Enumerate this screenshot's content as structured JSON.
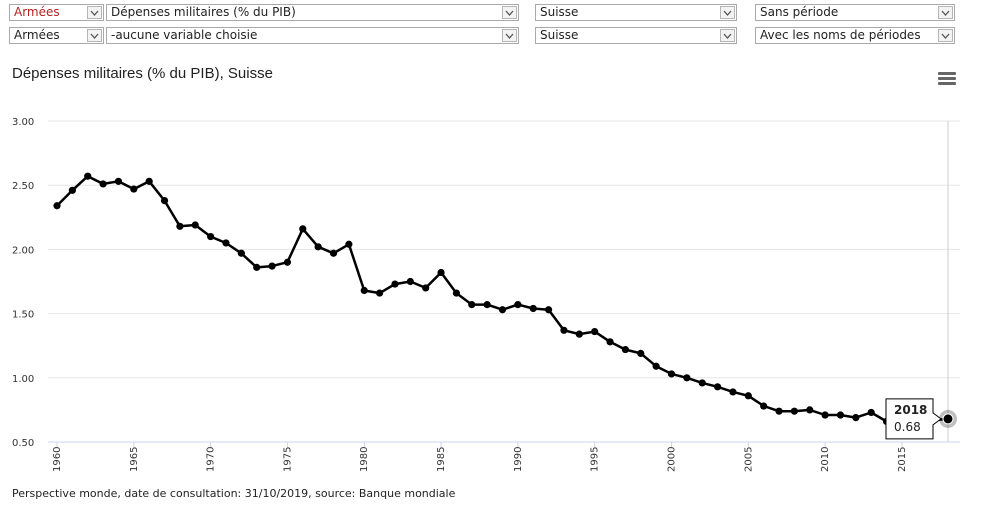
{
  "controls": {
    "row1": [
      {
        "value": "Armées",
        "accent": true
      },
      {
        "value": "Dépenses militaires (% du PIB)",
        "accent": false
      },
      {
        "value": "Suisse",
        "accent": false
      },
      {
        "value": "Sans période",
        "accent": false
      }
    ],
    "row2": [
      {
        "value": "Armées",
        "accent": false
      },
      {
        "value": "-aucune variable choisie",
        "accent": false
      },
      {
        "value": "Suisse",
        "accent": false
      },
      {
        "value": "Avec les noms de périodes",
        "accent": false
      }
    ]
  },
  "menu_icon": "hamburger-menu-icon",
  "source_note": "Perspective monde, date de consultation: 31/10/2019, source: Banque mondiale",
  "colors": {
    "accent": "#b22222",
    "line": "#000000",
    "grid": "#e6e6e6"
  },
  "chart_data": {
    "type": "line",
    "title": "Dépenses militaires (% du PIB), Suisse",
    "xlabel": "",
    "ylabel": "",
    "xlim": [
      1960,
      2018
    ],
    "ylim": [
      0.5,
      3.0
    ],
    "yticks": [
      "0.50",
      "1.00",
      "1.50",
      "2.00",
      "2.50",
      "3.00"
    ],
    "xticks": [
      "1960",
      "1965",
      "1970",
      "1975",
      "1980",
      "1985",
      "1990",
      "1995",
      "2000",
      "2005",
      "2010",
      "2015"
    ],
    "grid": true,
    "legend": "none",
    "series": [
      {
        "x": [
          1960,
          1961,
          1962,
          1963,
          1964,
          1965,
          1966,
          1967,
          1968,
          1969,
          1970,
          1971,
          1972,
          1973,
          1974,
          1975,
          1976,
          1977,
          1978,
          1979,
          1980,
          1981,
          1982,
          1983,
          1984,
          1985,
          1986,
          1987,
          1988,
          1989,
          1990,
          1991,
          1992,
          1993,
          1994,
          1995,
          1996,
          1997,
          1998,
          1999,
          2000,
          2001,
          2002,
          2003,
          2004,
          2005,
          2006,
          2007,
          2008,
          2009,
          2010,
          2011,
          2012,
          2013,
          2014,
          2015,
          2016,
          2017,
          2018
        ],
        "values": [
          2.34,
          2.46,
          2.57,
          2.51,
          2.53,
          2.47,
          2.53,
          2.38,
          2.18,
          2.19,
          2.1,
          2.05,
          1.97,
          1.86,
          1.87,
          1.9,
          2.16,
          2.02,
          1.97,
          2.04,
          1.68,
          1.66,
          1.73,
          1.75,
          1.7,
          1.82,
          1.66,
          1.57,
          1.57,
          1.53,
          1.57,
          1.54,
          1.53,
          1.37,
          1.34,
          1.36,
          1.28,
          1.22,
          1.19,
          1.09,
          1.03,
          1.0,
          0.96,
          0.93,
          0.89,
          0.86,
          0.78,
          0.74,
          0.74,
          0.75,
          0.71,
          0.71,
          0.69,
          0.73,
          0.66,
          0.66,
          0.67,
          0.67,
          0.68
        ]
      }
    ],
    "tooltip": {
      "year": "2018",
      "value": "0.68"
    }
  }
}
